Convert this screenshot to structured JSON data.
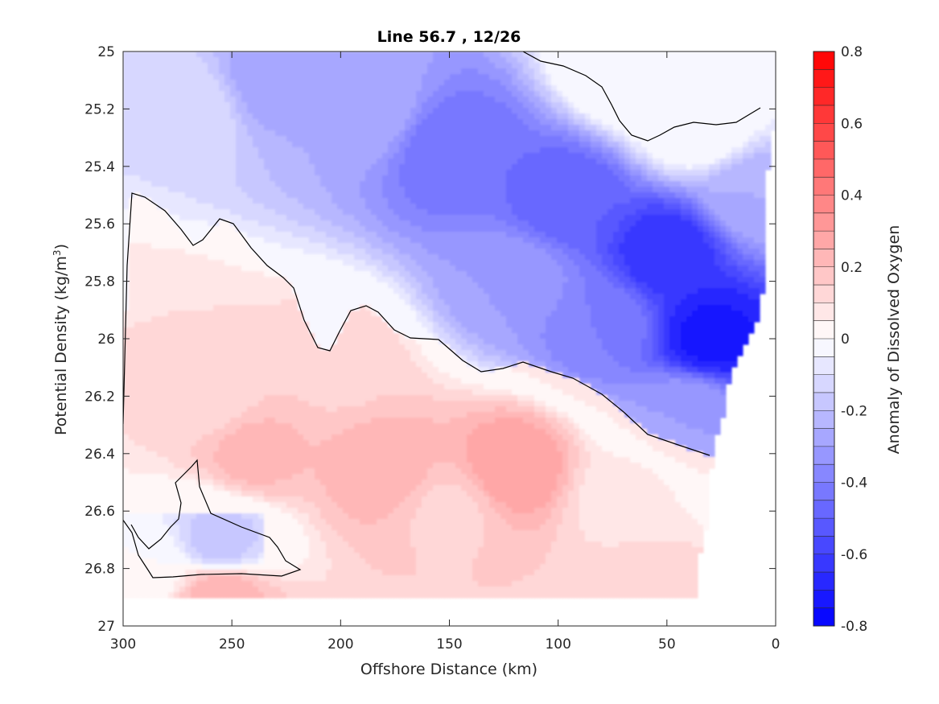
{
  "chart_data": {
    "type": "heatmap",
    "title": "Line 56.7 , 12/26",
    "xlabel": "Offshore Distance (km)",
    "ylabel_main": "Potential Density (kg/m",
    "ylabel_sup": "3",
    "ylabel_close": ")",
    "colorbar_label": "Anomaly of Dissolved Oxygen",
    "xlim": [
      300,
      0
    ],
    "ylim": [
      27,
      25
    ],
    "x_ticks": [
      "300",
      "250",
      "200",
      "150",
      "100",
      "50",
      "0"
    ],
    "y_ticks": [
      "25",
      "25.2",
      "25.4",
      "25.6",
      "25.8",
      "26",
      "26.2",
      "26.4",
      "26.6",
      "26.8",
      "27"
    ],
    "colorbar_ticks": [
      "0.8",
      "0.6",
      "0.4",
      "0.2",
      "0",
      "-0.2",
      "-0.4",
      "-0.6",
      "-0.8"
    ],
    "clim": [
      -0.8,
      0.8
    ],
    "colormap": {
      "negative": "#0000ff",
      "zero": "#ffffff",
      "positive": "#ff0000"
    },
    "grid": false,
    "zero_contour": true,
    "features": [
      {
        "x": 232,
        "y": 25.1,
        "value": -0.28
      },
      {
        "x": 148,
        "y": 25.35,
        "value": -0.45
      },
      {
        "x": 95,
        "y": 25.52,
        "value": -0.5
      },
      {
        "x": 50,
        "y": 25.7,
        "value": -0.65
      },
      {
        "x": 30,
        "y": 26.0,
        "value": -0.72
      },
      {
        "x": 10,
        "y": 25.5,
        "value": -0.25
      },
      {
        "x": 270,
        "y": 25.2,
        "value": -0.1
      },
      {
        "x": 190,
        "y": 25.2,
        "value": -0.25
      },
      {
        "x": 120,
        "y": 25.8,
        "value": -0.3
      },
      {
        "x": 80,
        "y": 25.95,
        "value": -0.4
      },
      {
        "x": 40,
        "y": 26.25,
        "value": -0.3
      },
      {
        "x": 60,
        "y": 25.05,
        "value": 0.2
      },
      {
        "x": 35,
        "y": 25.25,
        "value": 0.05
      },
      {
        "x": 240,
        "y": 26.4,
        "value": 0.22
      },
      {
        "x": 180,
        "y": 26.45,
        "value": 0.24
      },
      {
        "x": 120,
        "y": 26.45,
        "value": 0.3
      },
      {
        "x": 200,
        "y": 26.1,
        "value": 0.14
      },
      {
        "x": 260,
        "y": 26.2,
        "value": 0.12
      },
      {
        "x": 285,
        "y": 26.0,
        "value": 0.1
      },
      {
        "x": 255,
        "y": 26.9,
        "value": 0.25
      },
      {
        "x": 60,
        "y": 26.9,
        "value": 0.15
      },
      {
        "x": 150,
        "y": 26.6,
        "value": 0.14
      },
      {
        "x": 70,
        "y": 26.55,
        "value": 0.08
      },
      {
        "x": 255,
        "y": 26.7,
        "value": -0.18
      },
      {
        "x": 290,
        "y": 26.8,
        "value": 0.0
      }
    ]
  }
}
